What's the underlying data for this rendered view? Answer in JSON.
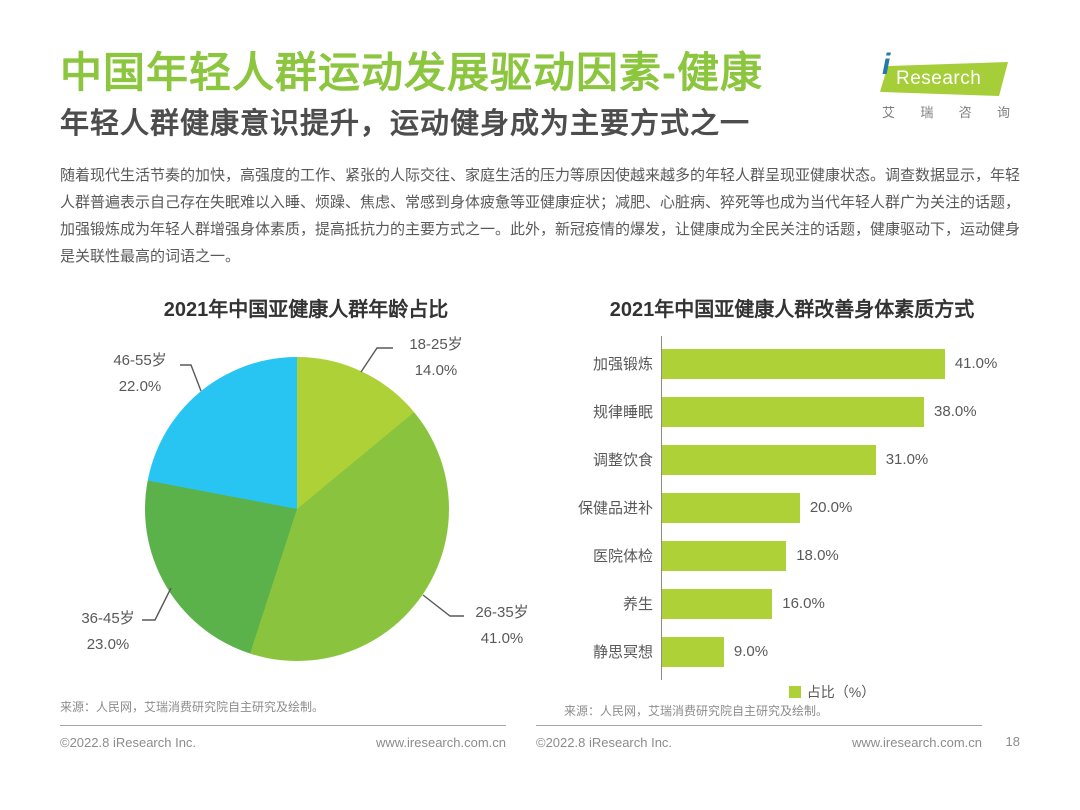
{
  "header": {
    "title": "中国年轻人群运动发展驱动因素-健康",
    "subtitle": "年轻人群健康意识提升，运动健身成为主要方式之一"
  },
  "logo": {
    "i_letter": "i",
    "brand": "Research",
    "chinese_chars": [
      "艾",
      "瑞",
      "咨",
      "询"
    ],
    "flag_color": "#A5CE39",
    "i_color": "#2579A9"
  },
  "colors": {
    "accent_green": "#8CC63F",
    "text_gray": "#595959"
  },
  "intro": {
    "text": "随着现代生活节奏的加快，高强度的工作、紧张的人际交往、家庭生活的压力等原因使越来越多的年轻人群呈现亚健康状态。调查数据显示，年轻人群普遍表示自己存在失眠难以入睡、烦躁、焦虑、常感到身体疲惫等亚健康症状；减肥、心脏病、猝死等也成为当代年轻人群广为关注的话题，加强锻炼成为年轻人群增强身体素质，提高抵抗力的主要方式之一。此外，新冠疫情的爆发，让健康成为全民关注的话题，健康驱动下，运动健身是关联性最高的词语之一。"
  },
  "chart_data": [
    {
      "type": "pie",
      "title": "2021年中国亚健康人群年龄占比",
      "start_angle_deg": 0,
      "direction": "clockwise",
      "slices": [
        {
          "label": "18-25岁",
          "value": 14.0,
          "display": "14.0%",
          "color": "#AFD138"
        },
        {
          "label": "26-35岁",
          "value": 41.0,
          "display": "41.0%",
          "color": "#8AC43F"
        },
        {
          "label": "36-45岁",
          "value": 23.0,
          "display": "23.0%",
          "color": "#5CB24A"
        },
        {
          "label": "46-55岁",
          "value": 22.0,
          "display": "22.0%",
          "color": "#29C5F2"
        }
      ],
      "source": "来源：人民网，艾瑞消费研究院自主研究及绘制。"
    },
    {
      "type": "bar",
      "orientation": "horizontal",
      "title": "2021年中国亚健康人群改善身体素质方式",
      "categories": [
        "加强锻炼",
        "规律睡眠",
        "调整饮食",
        "保健品进补",
        "医院体检",
        "养生",
        "静思冥想"
      ],
      "values": [
        41.0,
        38.0,
        31.0,
        20.0,
        18.0,
        16.0,
        9.0
      ],
      "value_labels": [
        "41.0%",
        "38.0%",
        "31.0%",
        "20.0%",
        "18.0%",
        "16.0%",
        "9.0%"
      ],
      "bar_color": "#AFD138",
      "legend": "占比（%）",
      "legend_position": "bottom",
      "source": "来源：人民网，艾瑞消费研究院自主研究及绘制。"
    }
  ],
  "footer": {
    "copyright": "©2022.8 iResearch Inc.",
    "website": "www.iresearch.com.cn",
    "page_number": "18"
  }
}
